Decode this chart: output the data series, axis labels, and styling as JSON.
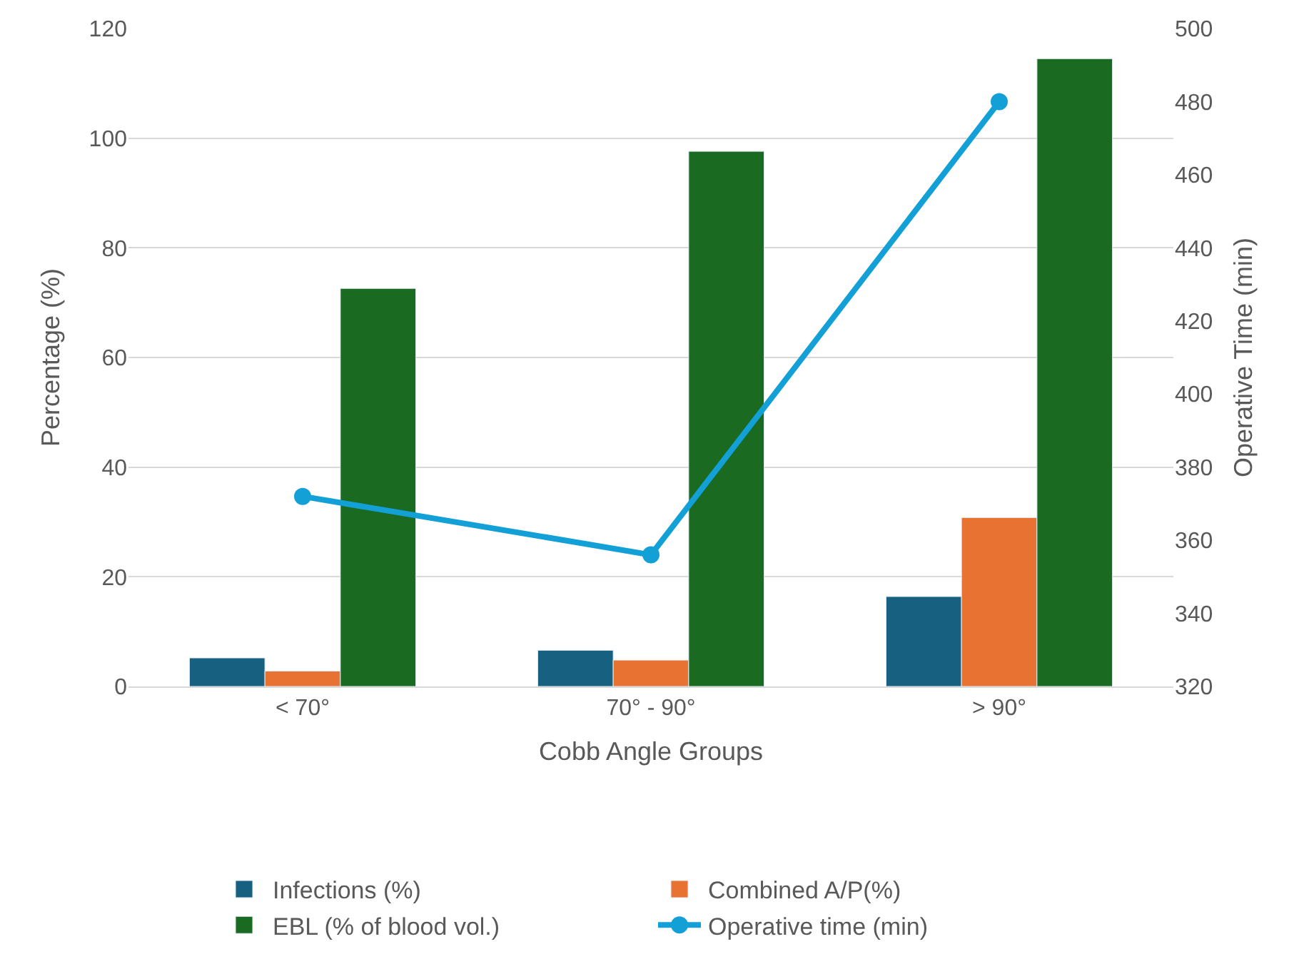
{
  "chart_data": {
    "type": "bar",
    "xlabel": "Cobb Angle Groups",
    "ylabel": "Percentage (%)",
    "y2label": "Operative Time (min)",
    "categories": [
      "< 70°",
      "70° - 90°",
      "> 90°"
    ],
    "series": [
      {
        "name": "Infections (%)",
        "color": "#17607f",
        "values": [
          5.2,
          6.6,
          16.4
        ]
      },
      {
        "name": "Combined A/P(%)",
        "color": "#e87232",
        "values": [
          2.8,
          4.8,
          30.8
        ]
      },
      {
        "name": "EBL (% of blood vol.)",
        "color": "#1b6a22",
        "values": [
          72.6,
          97.6,
          114.5
        ]
      },
      {
        "name": "Operative time (min)",
        "color": "#12a0d7",
        "type": "line",
        "axis": "y2",
        "marker": "circle",
        "values": [
          372,
          356,
          480
        ]
      }
    ],
    "ylim": [
      0,
      120
    ],
    "yticks": [
      0,
      20,
      40,
      60,
      80,
      100,
      120
    ],
    "y2lim": [
      320,
      500
    ],
    "y2ticks": [
      320,
      340,
      360,
      380,
      400,
      420,
      440,
      460,
      480,
      500
    ],
    "grid": "y",
    "legend": "bottom"
  }
}
